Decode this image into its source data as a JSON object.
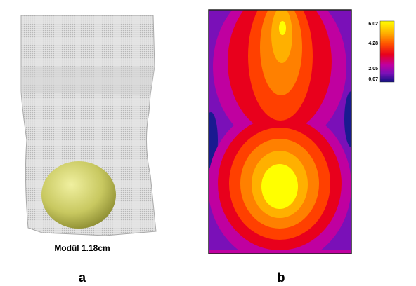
{
  "panels": [
    {
      "caption": "Modül 1.18cm",
      "label": "a"
    },
    {
      "label": "b"
    }
  ],
  "colorbar": {
    "labels": [
      "6,02",
      "4,28",
      "2,05",
      "0,07"
    ]
  }
}
